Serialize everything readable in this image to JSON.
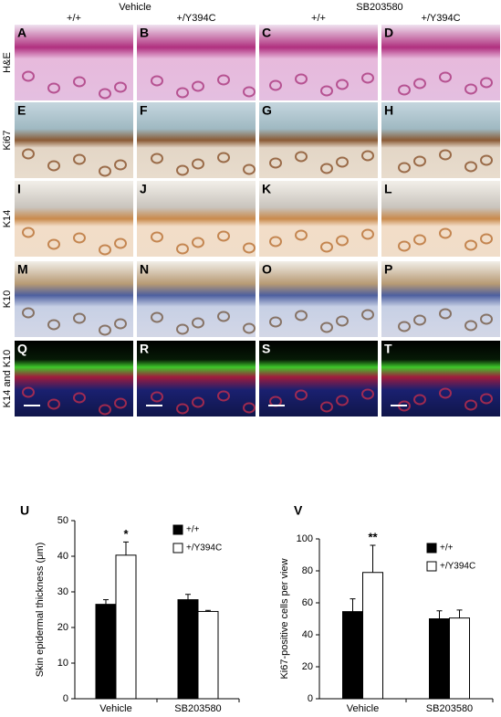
{
  "header": {
    "groups": [
      "Vehicle",
      "SB203580"
    ],
    "columns": [
      "+/+",
      "+/Y394C",
      "+/+",
      "+/Y394C"
    ]
  },
  "rows": [
    {
      "label": "H&E",
      "panels": [
        "A",
        "B",
        "C",
        "D"
      ]
    },
    {
      "label": "Ki67",
      "panels": [
        "E",
        "F",
        "G",
        "H"
      ]
    },
    {
      "label": "K14",
      "panels": [
        "I",
        "J",
        "K",
        "L"
      ]
    },
    {
      "label": "K10",
      "panels": [
        "M",
        "N",
        "O",
        "P"
      ]
    },
    {
      "label": "K14 and K10",
      "panels": [
        "Q",
        "R",
        "S",
        "T"
      ]
    }
  ],
  "chart_data": [
    {
      "type": "bar",
      "panel": "U",
      "ylabel": "Skin epidermal thickness (μm)",
      "categories": [
        "Vehicle",
        "SB203580"
      ],
      "series": [
        {
          "name": "+/+",
          "color": "#000000",
          "values": [
            26.5,
            27.8
          ],
          "errors": [
            1.3,
            1.5
          ]
        },
        {
          "name": "+/Y394C",
          "color": "#ffffff",
          "values": [
            40.3,
            24.5
          ],
          "errors": [
            3.7,
            0.3
          ]
        }
      ],
      "annotations": [
        {
          "text": "*",
          "series": 1,
          "category": 0
        }
      ],
      "ylim": [
        0,
        50
      ],
      "yticks": [
        0,
        10,
        20,
        30,
        40,
        50
      ],
      "legend": "upper right"
    },
    {
      "type": "bar",
      "panel": "V",
      "ylabel": "Ki67-positive cells per view",
      "categories": [
        "Vehicle",
        "SB203580"
      ],
      "series": [
        {
          "name": "+/+",
          "color": "#000000",
          "values": [
            54.5,
            50
          ],
          "errors": [
            8,
            5
          ]
        },
        {
          "name": "+/Y394C",
          "color": "#ffffff",
          "values": [
            79,
            50.5
          ],
          "errors": [
            17,
            5
          ]
        }
      ],
      "annotations": [
        {
          "text": "**",
          "series": 1,
          "category": 0
        }
      ],
      "ylim": [
        0,
        100
      ],
      "yticks": [
        0,
        20,
        40,
        60,
        80,
        100
      ],
      "legend": "upper right"
    }
  ]
}
